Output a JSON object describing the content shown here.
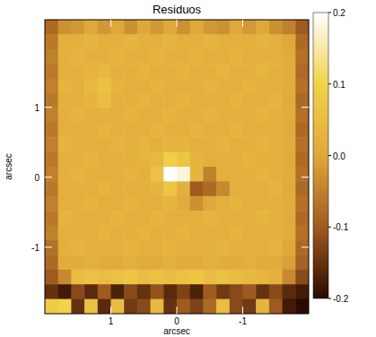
{
  "chart_data": {
    "type": "heatmap",
    "title": "Residuos",
    "x_label": "arcsec",
    "y_label": "arcsec",
    "xlim": [
      2,
      -2
    ],
    "ylim": [
      -1.95,
      2.25
    ],
    "xticks": [
      1,
      0,
      -1
    ],
    "yticks": [
      -1,
      0,
      1
    ],
    "colorbar_range": [
      -0.2,
      0.2
    ],
    "colorbar_ticks": [
      0.2,
      0.1,
      {
        "value": 0,
        "label": "0.0"
      },
      -0.1,
      -0.2
    ],
    "cells": [
      [
        -0.08,
        -0.03,
        -0.02,
        0.0,
        -0.02,
        0.0,
        -0.03,
        0.0,
        -0.02,
        0.0,
        -0.03,
        0.0,
        -0.02,
        -0.03,
        0.0,
        -0.02,
        0.0,
        -0.03,
        -0.05,
        -0.1
      ],
      [
        -0.06,
        0.02,
        0.02,
        0.03,
        0.02,
        0.02,
        0.03,
        0.02,
        0.02,
        0.03,
        0.02,
        0.02,
        0.03,
        0.02,
        0.02,
        0.02,
        0.03,
        0.02,
        0.0,
        -0.08
      ],
      [
        -0.05,
        0.02,
        0.03,
        0.02,
        0.02,
        0.03,
        0.02,
        0.02,
        0.03,
        0.02,
        0.02,
        0.03,
        0.02,
        0.02,
        0.03,
        0.02,
        0.02,
        0.02,
        0.01,
        -0.07
      ],
      [
        -0.06,
        0.02,
        0.02,
        0.03,
        0.04,
        0.02,
        0.02,
        0.03,
        0.02,
        0.02,
        0.03,
        0.02,
        0.02,
        0.03,
        0.02,
        0.02,
        0.03,
        0.02,
        0.01,
        -0.08
      ],
      [
        -0.05,
        0.03,
        0.02,
        0.04,
        0.06,
        0.03,
        0.02,
        0.02,
        0.03,
        0.02,
        0.02,
        0.02,
        0.03,
        0.02,
        0.02,
        0.03,
        0.02,
        0.02,
        0.01,
        -0.07
      ],
      [
        -0.06,
        0.02,
        0.02,
        0.03,
        0.05,
        0.02,
        0.02,
        0.03,
        0.02,
        0.02,
        0.03,
        0.02,
        0.02,
        0.02,
        0.03,
        0.02,
        0.02,
        0.03,
        0.01,
        -0.08
      ],
      [
        -0.05,
        0.02,
        0.03,
        0.02,
        0.02,
        0.02,
        0.03,
        0.02,
        0.02,
        0.03,
        0.02,
        0.02,
        0.03,
        0.02,
        0.02,
        0.02,
        0.03,
        0.02,
        0.01,
        -0.07
      ],
      [
        -0.06,
        0.02,
        0.02,
        0.02,
        0.03,
        0.02,
        0.02,
        0.02,
        0.03,
        0.02,
        0.02,
        0.03,
        0.02,
        0.02,
        0.03,
        0.02,
        0.02,
        0.02,
        0.01,
        -0.08
      ],
      [
        -0.05,
        0.03,
        0.02,
        0.02,
        0.02,
        0.03,
        0.02,
        0.03,
        0.02,
        0.03,
        0.03,
        0.02,
        0.02,
        0.03,
        0.02,
        0.02,
        0.03,
        0.02,
        0.01,
        -0.07
      ],
      [
        -0.06,
        0.02,
        0.02,
        0.03,
        0.02,
        0.02,
        0.02,
        0.03,
        0.04,
        0.09,
        0.07,
        0.03,
        0.02,
        0.02,
        0.02,
        0.03,
        0.02,
        0.02,
        0.01,
        -0.08
      ],
      [
        -0.05,
        0.02,
        0.03,
        0.02,
        0.02,
        0.02,
        0.03,
        0.02,
        0.06,
        0.2,
        0.18,
        0.03,
        -0.05,
        0.02,
        0.02,
        0.02,
        0.03,
        0.02,
        0.01,
        -0.07
      ],
      [
        -0.06,
        0.02,
        0.02,
        0.02,
        0.03,
        0.02,
        0.02,
        0.02,
        0.03,
        0.07,
        0.02,
        -0.1,
        -0.08,
        -0.04,
        0.02,
        0.02,
        0.02,
        0.03,
        0.01,
        -0.08
      ],
      [
        -0.05,
        0.02,
        0.02,
        0.03,
        0.02,
        0.02,
        0.03,
        0.02,
        0.02,
        0.03,
        0.01,
        -0.03,
        0.0,
        0.02,
        0.03,
        0.02,
        0.02,
        0.02,
        0.01,
        -0.07
      ],
      [
        -0.06,
        0.03,
        0.02,
        0.02,
        0.02,
        0.03,
        0.02,
        0.02,
        0.03,
        0.02,
        0.02,
        0.02,
        0.03,
        0.02,
        0.02,
        0.02,
        0.03,
        0.02,
        0.01,
        -0.08
      ],
      [
        -0.05,
        0.02,
        0.02,
        0.02,
        0.03,
        0.02,
        0.02,
        0.03,
        0.02,
        0.02,
        0.03,
        0.02,
        0.02,
        0.02,
        0.03,
        0.02,
        0.02,
        0.02,
        0.01,
        -0.07
      ],
      [
        -0.07,
        0.02,
        0.03,
        0.02,
        0.02,
        0.02,
        0.03,
        0.02,
        0.02,
        0.03,
        0.02,
        0.02,
        0.02,
        0.03,
        0.02,
        0.02,
        0.02,
        0.03,
        0.0,
        -0.08
      ],
      [
        -0.08,
        0.01,
        0.01,
        0.02,
        0.01,
        0.01,
        0.02,
        0.01,
        0.01,
        0.02,
        0.01,
        0.01,
        0.02,
        0.01,
        0.01,
        0.02,
        0.01,
        0.01,
        -0.01,
        -0.09
      ],
      [
        -0.1,
        -0.04,
        0.05,
        0.06,
        0.05,
        0.06,
        0.07,
        0.05,
        0.06,
        0.05,
        0.06,
        0.07,
        0.05,
        0.06,
        0.05,
        0.04,
        0.03,
        0.02,
        -0.04,
        -0.12
      ],
      [
        -0.15,
        -0.18,
        -0.12,
        -0.16,
        -0.1,
        -0.17,
        -0.12,
        -0.15,
        -0.11,
        -0.16,
        -0.13,
        -0.17,
        -0.1,
        -0.14,
        -0.12,
        -0.1,
        -0.15,
        -0.12,
        -0.16,
        -0.18
      ],
      [
        0.08,
        0.1,
        -0.15,
        0.06,
        -0.16,
        0.05,
        -0.14,
        -0.12,
        0.04,
        -0.15,
        -0.1,
        -0.13,
        -0.08,
        0.05,
        -0.12,
        -0.14,
        0.03,
        -0.1,
        -0.18,
        -0.2
      ]
    ]
  }
}
